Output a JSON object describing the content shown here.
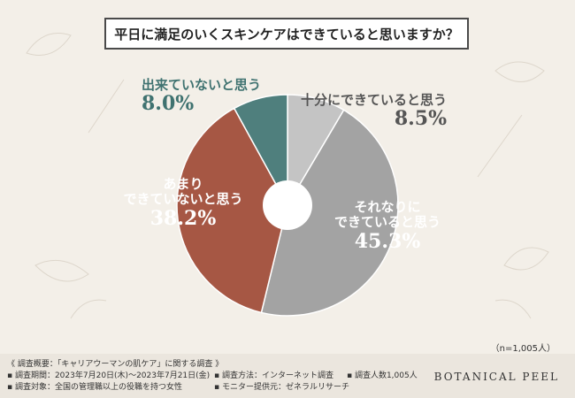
{
  "chart_data": {
    "type": "pie",
    "title": "平日に満足のいくスキンケアはできていると思いますか？",
    "slices": [
      {
        "label_lines": [
          "十分にできていると思う"
        ],
        "value": 8.5,
        "value_text": "8.5%",
        "color": "#c4c4c4",
        "text_color": "#555555"
      },
      {
        "label_lines": [
          "それなりに",
          "できていると思う"
        ],
        "value": 45.3,
        "value_text": "45.3%",
        "color": "#a3a3a3",
        "text_color": "#ffffff"
      },
      {
        "label_lines": [
          "あまり",
          "できていないと思う"
        ],
        "value": 38.2,
        "value_text": "38.2%",
        "color": "#a65744",
        "text_color": "#ffffff"
      },
      {
        "label_lines": [
          "出来ていないと思う"
        ],
        "value": 8.0,
        "value_text": "8.0%",
        "color": "#4f7f7d",
        "text_color": "#3f7270"
      }
    ],
    "sample_note": "（n=1,005人）"
  },
  "footer": {
    "col1": [
      "《 調査概要：「キャリアウーマンの肌ケア」に関する調査 》",
      "▪ 調査期間：2023年7月20日(木)～2023年7月21日(金)",
      "▪ 調査対象：全国の管理職以上の役職を持つ女性"
    ],
    "col2": [
      "▪ 調査方法：インターネット調査",
      "▪ モニター提供元：ゼネラルリサーチ"
    ],
    "col3": [
      "▪ 調査人数1,005人"
    ],
    "brand": "BOTANICAL PEEL"
  }
}
